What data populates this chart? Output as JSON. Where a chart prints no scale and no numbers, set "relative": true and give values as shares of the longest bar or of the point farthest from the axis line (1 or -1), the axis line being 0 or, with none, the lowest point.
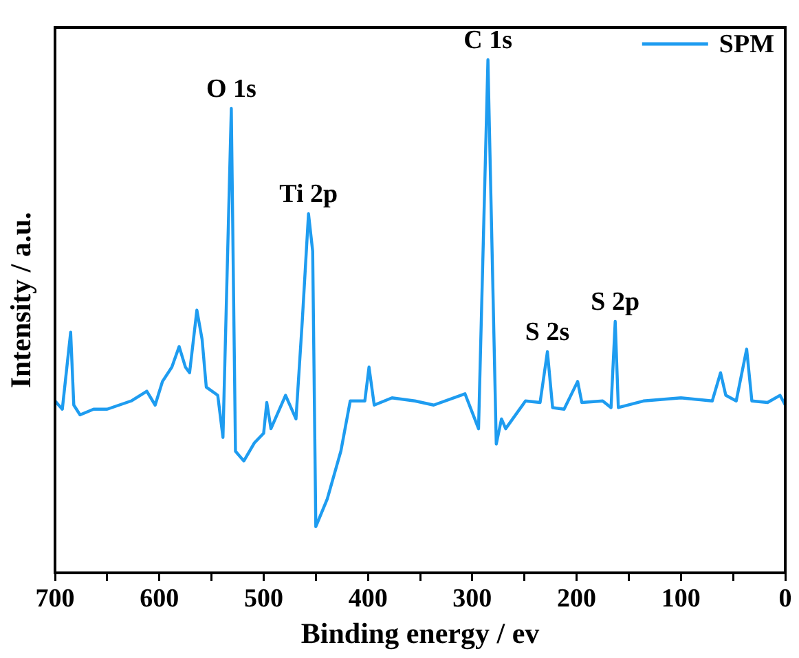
{
  "chart_data": {
    "type": "line",
    "xlabel": "Binding energy / ev",
    "ylabel": "Intensity / a.u.",
    "relative": true,
    "xlim": [
      700,
      0
    ],
    "xticks": [
      0,
      {
        "value": 50,
        "label": null
      },
      100,
      {
        "value": 150,
        "label": null
      },
      200,
      {
        "value": 250,
        "label": null
      },
      300,
      {
        "value": 350,
        "label": null
      },
      400,
      {
        "value": 450,
        "label": null
      },
      500,
      {
        "value": 550,
        "label": null
      },
      600,
      {
        "value": 650,
        "label": null
      },
      700
    ],
    "legend": "top right",
    "marker": "none",
    "line_style": "solid",
    "series": [
      {
        "name": "SPM",
        "color": "#1e9cf0",
        "x": [
          700,
          693,
          685,
          682,
          676,
          663,
          650,
          627,
          612,
          604,
          597,
          588,
          581,
          575,
          571,
          564,
          559,
          555,
          544,
          539,
          531,
          527,
          519,
          509,
          500,
          497,
          493,
          479,
          469,
          463,
          457,
          453,
          450,
          439,
          426,
          417,
          403,
          399,
          394,
          377,
          355,
          337,
          307,
          294,
          285,
          277,
          272,
          268,
          249,
          235,
          228,
          223,
          212,
          199,
          195,
          175,
          167,
          163,
          160,
          136,
          100,
          70,
          62,
          57,
          47,
          37,
          32,
          17,
          5,
          0
        ],
        "values": [
          0.335,
          0.319,
          0.469,
          0.327,
          0.308,
          0.319,
          0.319,
          0.335,
          0.354,
          0.327,
          0.373,
          0.401,
          0.441,
          0.401,
          0.39,
          0.512,
          0.455,
          0.362,
          0.346,
          0.264,
          0.905,
          0.237,
          0.218,
          0.253,
          0.272,
          0.332,
          0.281,
          0.346,
          0.3,
          0.49,
          0.7,
          0.627,
          0.09,
          0.144,
          0.237,
          0.335,
          0.335,
          0.401,
          0.327,
          0.341,
          0.335,
          0.327,
          0.349,
          0.281,
          1,
          0.251,
          0.3,
          0.281,
          0.335,
          0.332,
          0.431,
          0.322,
          0.319,
          0.373,
          0.332,
          0.335,
          0.322,
          0.49,
          0.322,
          0.335,
          0.341,
          0.335,
          0.39,
          0.346,
          0.335,
          0.436,
          0.335,
          0.332,
          0.346,
          0.327
        ]
      }
    ],
    "annotations": [
      {
        "text": "O 1s",
        "x": 531,
        "y": 0.905
      },
      {
        "text": "Ti 2p",
        "x": 457,
        "y": 0.7
      },
      {
        "text": "C 1s",
        "x": 285,
        "y": 1
      },
      {
        "text": "S 2s",
        "x": 228,
        "y": 0.431
      },
      {
        "text": "S 2p",
        "x": 163,
        "y": 0.49
      }
    ]
  }
}
